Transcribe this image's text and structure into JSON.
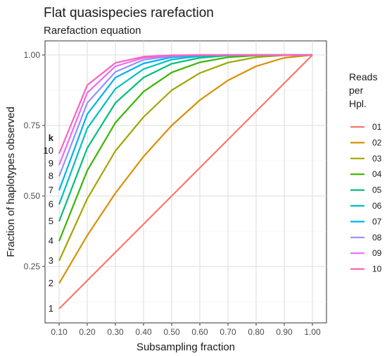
{
  "chart_data": {
    "type": "line",
    "title": "Flat quasispecies rarefaction",
    "subtitle": "Rarefaction equation",
    "xlabel": "Subsampling fraction",
    "ylabel": "Fraction of haplotypes observed",
    "xlim": [
      0.05,
      1.05
    ],
    "ylim": [
      0.05,
      1.05
    ],
    "x": [
      0.1,
      0.2,
      0.3,
      0.4,
      0.5,
      0.6,
      0.7,
      0.8,
      0.9,
      1.0
    ],
    "x_tick_labels": [
      "0.10",
      "0.20",
      "0.30",
      "0.40",
      "0.50",
      "0.60",
      "0.70",
      "0.80",
      "0.90",
      "1.00"
    ],
    "y_ticks": [
      0.25,
      0.5,
      0.75,
      1.0
    ],
    "y_tick_labels": [
      "0.25",
      "0.50",
      "0.75",
      "1.00"
    ],
    "grid": true,
    "legend": {
      "title": "Reads per Hpl.",
      "title_lines": [
        "Reads",
        "per",
        "Hpl."
      ],
      "position": "right"
    },
    "k_label_title": "k",
    "series": [
      {
        "name": "01",
        "label": "1",
        "color": "#F8766D",
        "values": [
          0.1,
          0.2,
          0.3,
          0.4,
          0.5,
          0.6,
          0.7,
          0.8,
          0.9,
          1.0
        ]
      },
      {
        "name": "02",
        "label": "2",
        "color": "#D89000",
        "values": [
          0.19,
          0.36,
          0.51,
          0.64,
          0.75,
          0.84,
          0.91,
          0.96,
          0.99,
          1.0
        ]
      },
      {
        "name": "03",
        "label": "3",
        "color": "#A3A500",
        "values": [
          0.27,
          0.49,
          0.66,
          0.78,
          0.875,
          0.936,
          0.973,
          0.992,
          0.999,
          1.0
        ]
      },
      {
        "name": "04",
        "label": "4",
        "color": "#39B600",
        "values": [
          0.34,
          0.59,
          0.76,
          0.87,
          0.938,
          0.974,
          0.992,
          0.998,
          1.0,
          1.0
        ]
      },
      {
        "name": "05",
        "label": "5",
        "color": "#00BF7D",
        "values": [
          0.41,
          0.67,
          0.83,
          0.92,
          0.969,
          0.99,
          0.998,
          1.0,
          1.0,
          1.0
        ]
      },
      {
        "name": "06",
        "label": "6",
        "color": "#00BFC4",
        "values": [
          0.47,
          0.74,
          0.88,
          0.95,
          0.984,
          0.996,
          0.999,
          1.0,
          1.0,
          1.0
        ]
      },
      {
        "name": "07",
        "label": "7",
        "color": "#00B0F6",
        "values": [
          0.52,
          0.79,
          0.92,
          0.97,
          0.992,
          0.998,
          1.0,
          1.0,
          1.0,
          1.0
        ]
      },
      {
        "name": "08",
        "label": "8",
        "color": "#9590FF",
        "values": [
          0.57,
          0.83,
          0.94,
          0.983,
          0.996,
          0.999,
          1.0,
          1.0,
          1.0,
          1.0
        ]
      },
      {
        "name": "09",
        "label": "9",
        "color": "#E76BF3",
        "values": [
          0.61,
          0.866,
          0.96,
          0.99,
          0.998,
          1.0,
          1.0,
          1.0,
          1.0,
          1.0
        ]
      },
      {
        "name": "10",
        "label": "10",
        "color": "#FF62BC",
        "values": [
          0.65,
          0.893,
          0.972,
          0.994,
          0.999,
          1.0,
          1.0,
          1.0,
          1.0,
          1.0
        ]
      }
    ]
  }
}
